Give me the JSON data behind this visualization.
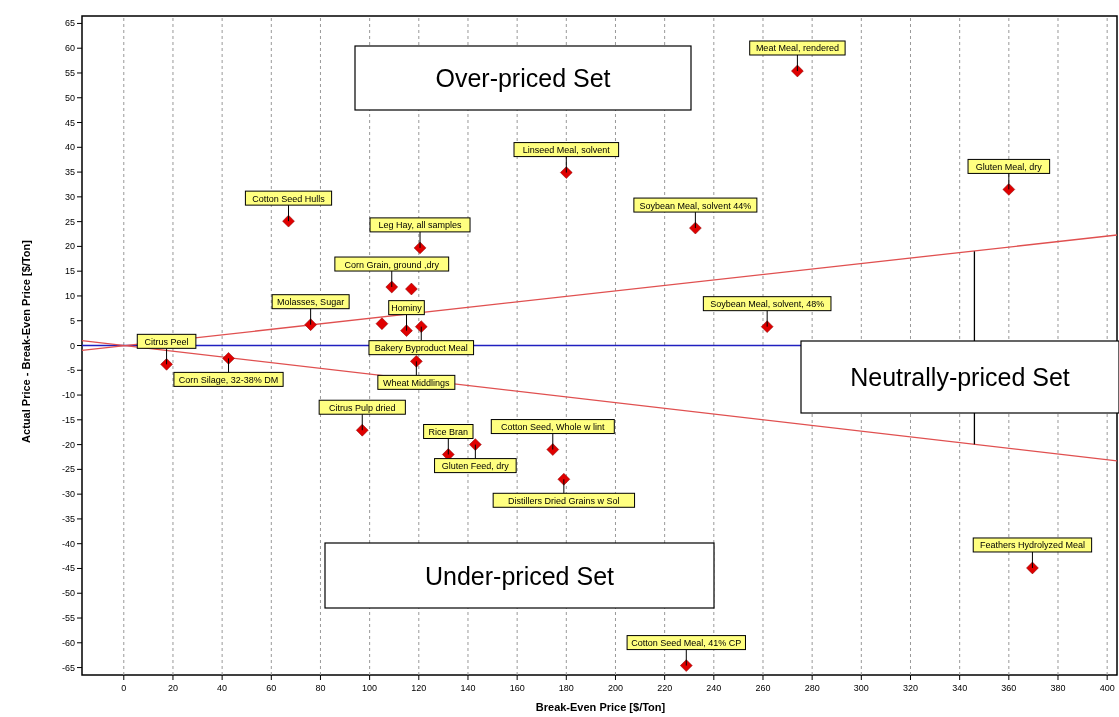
{
  "chart_data": {
    "type": "scatter",
    "xlabel": "Break-Even Price [$/Ton]",
    "ylabel": "Actual Price -  Break-Even Price [$/Ton]",
    "xlim": [
      -17,
      404
    ],
    "ylim": [
      -66.5,
      66.5
    ],
    "xticks": [
      0,
      20,
      40,
      60,
      80,
      100,
      120,
      140,
      160,
      180,
      200,
      220,
      240,
      260,
      280,
      300,
      320,
      340,
      360,
      380,
      400
    ],
    "yticks": [
      -65,
      -60,
      -55,
      -50,
      -45,
      -40,
      -35,
      -30,
      -25,
      -20,
      -15,
      -10,
      -5,
      0,
      5,
      10,
      15,
      20,
      25,
      30,
      35,
      40,
      45,
      50,
      55,
      60,
      65
    ],
    "grid": "x",
    "marker": "diamond",
    "series": [
      {
        "type": "line",
        "marker": "none",
        "color": "#e05050",
        "x": [
          -17,
          404
        ],
        "values": [
          -1,
          22.3
        ]
      },
      {
        "type": "line",
        "marker": "none",
        "color": "#e05050",
        "x": [
          -17,
          404
        ],
        "values": [
          1,
          -23.3
        ]
      },
      {
        "color": "#e00000",
        "x": [
          17.4,
          42.6,
          67,
          120.5,
          109,
          117,
          76,
          105,
          115,
          121,
          119,
          97,
          132,
          143,
          174.5,
          179,
          180,
          274,
          232.5,
          360,
          261.7,
          369.6,
          228.8
        ],
        "values": [
          -3.8,
          -2.6,
          25.1,
          19.7,
          11.8,
          11.4,
          4.2,
          4.4,
          3,
          3.8,
          -3.2,
          -17.1,
          -22,
          -20,
          -21,
          -27,
          34.9,
          55.4,
          23.7,
          31.5,
          3.8,
          -44.9,
          -64.6
        ]
      }
    ],
    "ref_lines": [
      {
        "axis": "y",
        "value": 0,
        "color": "#2020c0"
      }
    ],
    "annotations": [
      {
        "text": "Citrus Peel",
        "x": 17.4,
        "y": -3.8
      },
      {
        "text": "Corn Silage, 32-38% DM",
        "x": 42.6,
        "y": -2.6
      },
      {
        "text": "Cotton Seed Hulls",
        "x": 67,
        "y": 25.1
      },
      {
        "text": "Leg Hay, all samples",
        "x": 120.5,
        "y": 19.7
      },
      {
        "text": "Corn Grain, ground ,dry",
        "x": 109,
        "y": 11.8
      },
      {
        "text": "Molasses, Sugar",
        "x": 76,
        "y": 4.2
      },
      {
        "text": "Hominy",
        "x": 115,
        "y": 3
      },
      {
        "text": "Bakery Byproduct Meal",
        "x": 121,
        "y": 3.8
      },
      {
        "text": "Wheat Middlings",
        "x": 119,
        "y": -3.2
      },
      {
        "text": "Citrus Pulp dried",
        "x": 97,
        "y": -17.1
      },
      {
        "text": "Rice Bran",
        "x": 132,
        "y": -22
      },
      {
        "text": "Gluten Feed, dry",
        "x": 143,
        "y": -20
      },
      {
        "text": "Cotton Seed, Whole w lint",
        "x": 174.5,
        "y": -21
      },
      {
        "text": "Distillers Dried Grains w Sol",
        "x": 179,
        "y": -27
      },
      {
        "text": "Linseed Meal, solvent",
        "x": 180,
        "y": 34.9
      },
      {
        "text": "Meat Meal, rendered",
        "x": 274,
        "y": 55.4
      },
      {
        "text": "Soybean Meal, solvent 44%",
        "x": 232.5,
        "y": 23.7
      },
      {
        "text": "Gluten Meal, dry",
        "x": 360,
        "y": 31.5
      },
      {
        "text": "Soybean Meal, solvent, 48%",
        "x": 261.7,
        "y": 3.8
      },
      {
        "text": "Feathers Hydrolyzed Meal",
        "x": 369.6,
        "y": -44.9
      },
      {
        "text": "Cotton Seed Meal, 41% CP",
        "x": 228.8,
        "y": -64.6
      },
      "Over-priced Set",
      "Under-priced Set",
      {
        "text": "Neutrally-priced Set",
        "x": 346,
        "y": 19
      }
    ]
  }
}
